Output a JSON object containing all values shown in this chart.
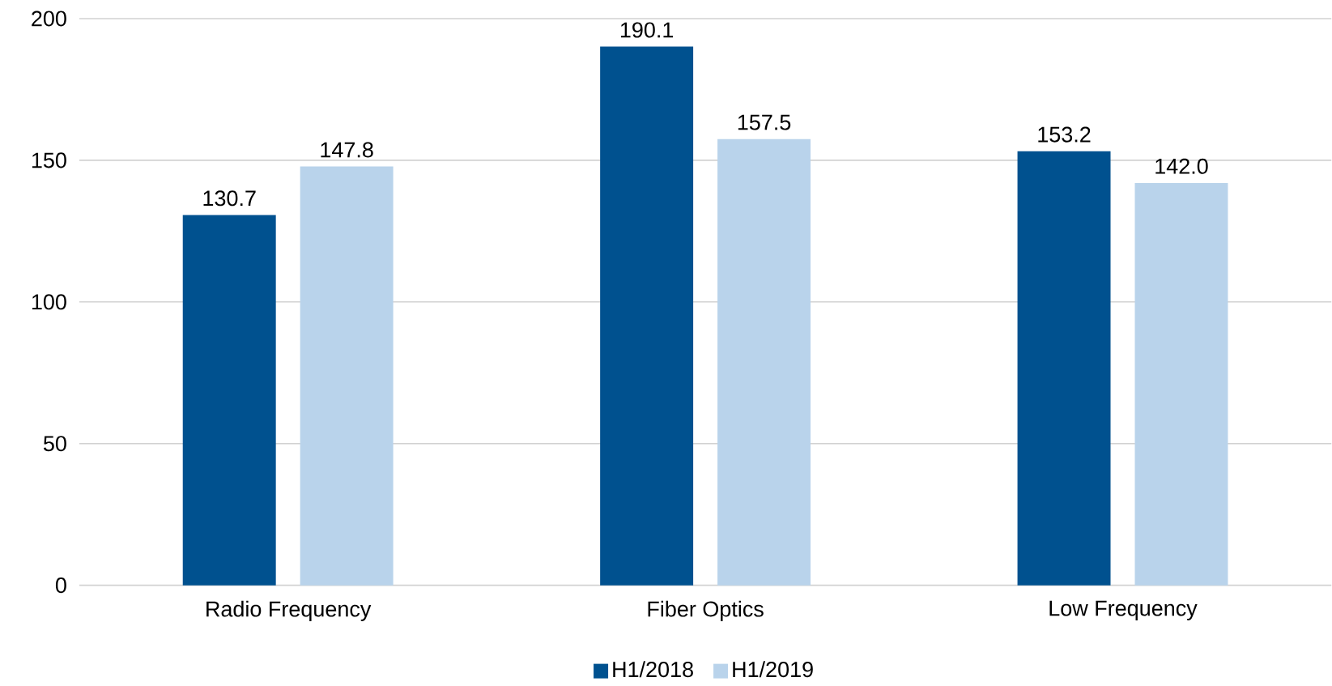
{
  "chart_data": {
    "type": "bar",
    "categories": [
      "Radio Frequency",
      "Fiber Optics",
      "Low Frequency"
    ],
    "series": [
      {
        "name": "H1/2018",
        "color": "#00518f",
        "values": [
          130.7,
          190.1,
          153.2
        ],
        "value_labels": [
          "130.7",
          "190.1",
          "153.2"
        ]
      },
      {
        "name": "H1/2019",
        "color": "#b9d3eb",
        "values": [
          147.8,
          157.5,
          142.0
        ],
        "value_labels": [
          "147.8",
          "157.5",
          "142.0"
        ]
      }
    ],
    "ylim": [
      0,
      200
    ],
    "yticks": [
      0,
      50,
      100,
      150,
      200
    ],
    "grid": "y",
    "legend": "bottom"
  }
}
